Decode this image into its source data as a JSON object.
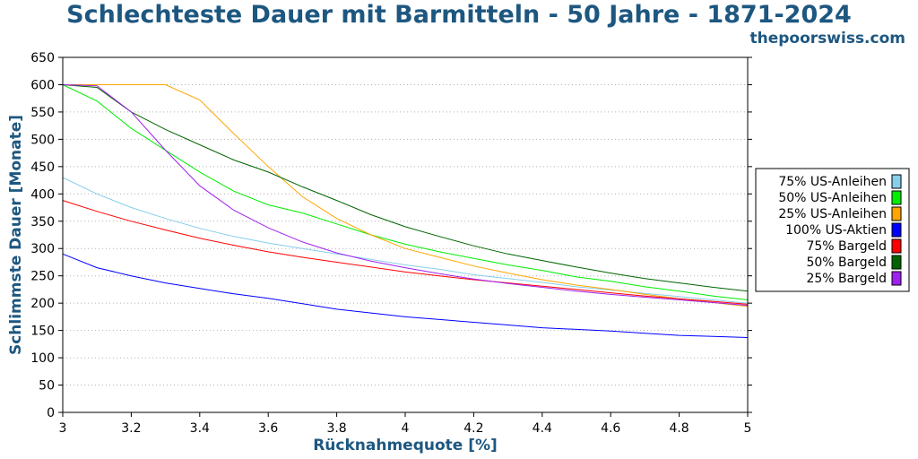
{
  "title": "Schlechteste Dauer mit Barmitteln - 50 Jahre - 1871-2024",
  "source": "thepoorswiss.com",
  "chart_data": {
    "type": "line",
    "xlabel": "Rücknahmequote [%]",
    "ylabel": "Schlimmste Dauer [Monate]",
    "xlim": [
      3,
      5
    ],
    "ylim": [
      0,
      650
    ],
    "xticks": [
      "3",
      "3.2",
      "3.4",
      "3.6",
      "3.8",
      "4",
      "4.2",
      "4.4",
      "4.6",
      "4.8",
      "5"
    ],
    "yticks": [
      "0",
      "50",
      "100",
      "150",
      "200",
      "250",
      "300",
      "350",
      "400",
      "450",
      "500",
      "550",
      "600",
      "650"
    ],
    "grid": "horizontal dotted",
    "legend_position": "right",
    "x": [
      3.0,
      3.1,
      3.2,
      3.3,
      3.4,
      3.5,
      3.6,
      3.7,
      3.8,
      3.9,
      4.0,
      4.1,
      4.2,
      4.3,
      4.4,
      4.5,
      4.6,
      4.7,
      4.8,
      4.9,
      5.0
    ],
    "series": [
      {
        "name": "75% US-Anleihen",
        "color": "#87ceeb",
        "values": [
          430,
          400,
          375,
          355,
          337,
          322,
          310,
          300,
          290,
          280,
          270,
          262,
          252,
          245,
          238,
          230,
          224,
          218,
          212,
          206,
          200
        ]
      },
      {
        "name": "50% US-Anleihen",
        "color": "#00ee00",
        "values": [
          600,
          570,
          520,
          480,
          440,
          405,
          380,
          365,
          345,
          325,
          308,
          294,
          282,
          270,
          260,
          248,
          240,
          230,
          222,
          213,
          206
        ]
      },
      {
        "name": "25% US-Anleihen",
        "color": "#ffa500",
        "values": [
          600,
          600,
          600,
          600,
          572,
          510,
          450,
          395,
          355,
          325,
          300,
          284,
          268,
          255,
          243,
          233,
          225,
          216,
          208,
          201,
          194
        ]
      },
      {
        "name": "100% US-Aktien",
        "color": "#0000ff",
        "values": [
          290,
          265,
          250,
          237,
          227,
          217,
          209,
          199,
          189,
          182,
          175,
          170,
          165,
          160,
          155,
          152,
          149,
          145,
          141,
          139,
          137
        ]
      },
      {
        "name": "75% Bargeld",
        "color": "#ff0000",
        "values": [
          388,
          368,
          350,
          334,
          319,
          306,
          294,
          284,
          275,
          266,
          257,
          250,
          243,
          237,
          231,
          225,
          219,
          213,
          208,
          203,
          198
        ]
      },
      {
        "name": "50% Bargeld",
        "color": "#006400",
        "values": [
          600,
          595,
          550,
          518,
          490,
          462,
          440,
          413,
          388,
          362,
          340,
          322,
          305,
          290,
          278,
          266,
          255,
          245,
          237,
          229,
          222
        ]
      },
      {
        "name": "25% Bargeld",
        "color": "#a020f0",
        "values": [
          600,
          598,
          550,
          480,
          415,
          370,
          338,
          312,
          292,
          277,
          265,
          254,
          244,
          236,
          229,
          222,
          216,
          211,
          206,
          201,
          196
        ]
      }
    ]
  }
}
